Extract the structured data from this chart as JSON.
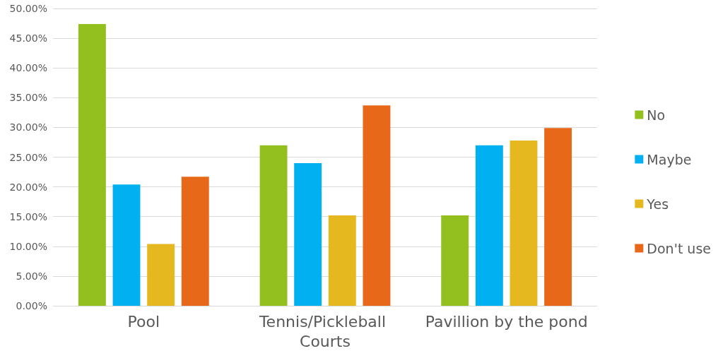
{
  "chart_data": {
    "type": "bar",
    "categories": [
      "Pool",
      "Tennis/Pickleball Courts",
      "Pavillion by the pond"
    ],
    "series": [
      {
        "name": "No",
        "color": "#93c01f",
        "values": [
          47.4,
          27.0,
          15.2
        ]
      },
      {
        "name": "Maybe",
        "color": "#00b0f0",
        "values": [
          20.4,
          24.0,
          27.0
        ]
      },
      {
        "name": "Yes",
        "color": "#e5b820",
        "values": [
          10.4,
          15.2,
          27.8
        ]
      },
      {
        "name": "Don't use",
        "color": "#e8681a",
        "values": [
          21.7,
          33.7,
          29.9
        ]
      }
    ],
    "ylim": [
      0,
      50
    ],
    "yticks": [
      {
        "value": 0,
        "label": "0.00%"
      },
      {
        "value": 5,
        "label": "5.00%"
      },
      {
        "value": 10,
        "label": "10.00%"
      },
      {
        "value": 15,
        "label": "15.00%"
      },
      {
        "value": 20,
        "label": "20.00%"
      },
      {
        "value": 25,
        "label": "25.00%"
      },
      {
        "value": 30,
        "label": "30.00%"
      },
      {
        "value": 35,
        "label": "35.00%"
      },
      {
        "value": 40,
        "label": "40.00%"
      },
      {
        "value": 45,
        "label": "45.00%"
      },
      {
        "value": 50,
        "label": "50.00%"
      }
    ],
    "grid": "y",
    "legend": "right"
  }
}
